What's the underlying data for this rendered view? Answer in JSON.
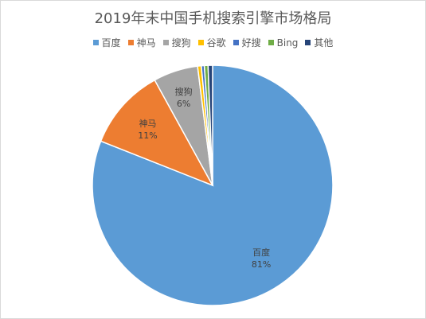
{
  "chart_data": {
    "type": "pie",
    "title": "2019年末中国手机搜索引擎市场格局",
    "legend_position": "top",
    "slices": [
      {
        "name": "百度",
        "value": 81,
        "label": "81%",
        "color": "#5b9bd5"
      },
      {
        "name": "神马",
        "value": 11,
        "label": "11%",
        "color": "#ed7d31"
      },
      {
        "name": "搜狗",
        "value": 6,
        "label": "6%",
        "color": "#a5a5a5"
      },
      {
        "name": "谷歌",
        "value": 0.5,
        "label": "",
        "color": "#ffc000"
      },
      {
        "name": "好搜",
        "value": 0.4,
        "label": "",
        "color": "#4472c4"
      },
      {
        "name": "Bing",
        "value": 0.5,
        "label": "",
        "color": "#70ad47"
      },
      {
        "name": "其他",
        "value": 0.6,
        "label": "",
        "color": "#264478"
      }
    ]
  }
}
